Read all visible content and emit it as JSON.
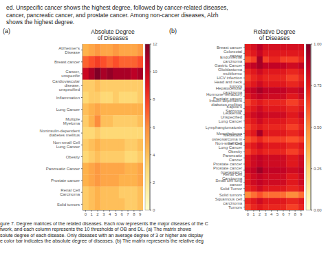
{
  "annotations": [
    "ed. Unspecific cancer shows the highest degree, followed by cancer-related diseases,",
    "cancer, pancreatic cancer, and prostate cancer. Among non-cancer diseases, Alzh",
    "shows the highest degree."
  ],
  "caption": [
    "gure 7. Degree matrices of the related diseases. Each row represents the major diseases of the C",
    "twork, and each column represents the 10 thresholds of OB and DL. (a) The matrix shows",
    "solute degree of each disease. Only diseases with an average degree of 3 or higher are display",
    "e color bar indicates the absolute degree of diseases. (b) The matrix represents the relative deg"
  ],
  "chart_data": [
    {
      "type": "heatmap",
      "annotations": [
        "(a)"
      ],
      "title": "Absolute Degree\nof Diseases",
      "color": "YlOrRd",
      "categories": [
        "Alzheimer's Disease",
        "Breast cancer",
        "Cancer, unspecific",
        "Cardiovascular disease, unspecified",
        "Inflammation",
        "Lung Cancer",
        "Multiple Myeloma",
        "Noninsulin-dependent diabetes mellitus",
        "Non-small Cell Lung Cancer",
        "Obesity",
        "Pancreatic Cancer",
        "Prostate cancer",
        "Renal Cell Carcinoma",
        "Solid tumors"
      ],
      "x": [
        0,
        1,
        2,
        3,
        4,
        5,
        6,
        7,
        8,
        9
      ],
      "xlim": [
        -0.5,
        9.5
      ],
      "xticks": [
        0,
        1,
        2,
        3,
        4,
        5,
        6,
        7,
        8,
        9
      ],
      "colorbar_range": [
        0,
        12
      ],
      "colorbar_ticks": [
        0,
        2,
        4,
        6,
        8,
        10,
        12
      ],
      "values": [
        [
          4.5,
          5.0,
          5.5,
          5.0,
          5.0,
          5.5,
          5.0,
          5.0,
          5.0,
          5.5
        ],
        [
          7.0,
          7.5,
          8.0,
          7.5,
          7.0,
          7.5,
          7.0,
          7.0,
          7.0,
          7.5
        ],
        [
          10.0,
          11.0,
          12.0,
          11.0,
          11.5,
          11.0,
          11.0,
          11.0,
          10.5,
          11.0
        ],
        [
          3.5,
          3.5,
          4.0,
          3.5,
          3.5,
          3.5,
          3.5,
          3.5,
          3.5,
          3.5
        ],
        [
          3.0,
          3.5,
          3.5,
          3.0,
          3.0,
          3.5,
          3.0,
          3.0,
          3.0,
          3.5
        ],
        [
          4.0,
          4.5,
          5.0,
          4.5,
          4.5,
          4.5,
          4.5,
          4.5,
          4.5,
          4.5
        ],
        [
          3.5,
          4.5,
          6.0,
          4.0,
          4.0,
          3.5,
          3.5,
          3.5,
          3.5,
          4.0
        ],
        [
          3.0,
          3.0,
          3.5,
          3.0,
          3.0,
          3.0,
          3.0,
          3.0,
          3.0,
          3.0
        ],
        [
          3.5,
          4.0,
          4.5,
          4.0,
          4.0,
          4.0,
          4.0,
          3.5,
          3.5,
          4.0
        ],
        [
          3.0,
          3.5,
          4.0,
          3.5,
          3.5,
          3.5,
          3.5,
          3.0,
          3.0,
          3.5
        ],
        [
          4.5,
          5.0,
          5.5,
          5.0,
          5.0,
          5.0,
          5.0,
          4.5,
          4.5,
          5.0
        ],
        [
          4.5,
          5.0,
          5.5,
          5.0,
          5.0,
          5.0,
          4.5,
          4.5,
          4.5,
          5.0
        ],
        [
          3.5,
          4.0,
          4.5,
          4.0,
          4.0,
          4.0,
          3.5,
          3.5,
          3.5,
          4.0
        ],
        [
          3.5,
          4.0,
          4.5,
          4.0,
          4.0,
          4.0,
          4.0,
          3.5,
          3.5,
          4.0
        ]
      ]
    },
    {
      "type": "heatmap",
      "annotations": [
        "(b)"
      ],
      "title": "Relative Degree\nof Diseases",
      "color": "YlOrRd",
      "categories": [
        "Breast cancer",
        "Colorectal cancer",
        "Endometrial carcinoma",
        "Gastric Cancer",
        "Glioblastoma multiforme",
        "HCV infection",
        "Head and neck tumors",
        "Hepatocellular carcinoma",
        "Hormone-refractory Prostate cancer",
        "Insulin-dependent diabetes mellitus",
        "Kaposi's Sarcoma",
        "Leukemia, Unspecified",
        "Lung Cancer",
        "Lymphangiomatosis",
        "Mesothelioma",
        "Metastatic osteosarcoma in the lung",
        "Non-small Cell Lung Cancer",
        "Obesity",
        "Pancreatic Cancer",
        "Prostate cancer",
        "Prostate cancer (metastatic)",
        "Renal Cell Carcinoma",
        "Small cell lung cancer",
        "Solid Tumor",
        "Solid tumors",
        "Squamous cell carcinoma",
        "Tumors"
      ],
      "x": [
        0,
        1,
        2,
        3,
        4,
        5,
        6,
        7,
        8,
        9
      ],
      "xlim": [
        -0.5,
        9.5
      ],
      "xticks": [
        0,
        1,
        2,
        3,
        4,
        5,
        6,
        7,
        8,
        9
      ],
      "colorbar_range": [
        0,
        1
      ],
      "colorbar_ticks": [
        {
          "value": 0,
          "label": "0.00"
        },
        0.25,
        {
          "value": 0.5,
          "label": "0.50"
        },
        0.75,
        {
          "value": 1.0,
          "label": "1.00"
        }
      ],
      "values": [
        [
          0.75,
          0.8,
          0.88,
          0.8,
          0.8,
          0.8,
          0.8,
          0.8,
          0.8,
          0.8
        ],
        [
          0.72,
          0.76,
          0.84,
          0.76,
          0.76,
          0.76,
          0.76,
          0.76,
          0.76,
          0.76
        ],
        [
          0.62,
          0.66,
          0.92,
          0.66,
          0.72,
          0.72,
          0.66,
          0.66,
          0.66,
          0.72
        ],
        [
          0.82,
          0.86,
          0.92,
          0.86,
          0.86,
          0.86,
          0.86,
          0.82,
          0.82,
          0.86
        ],
        [
          0.72,
          0.76,
          0.82,
          0.76,
          0.76,
          0.76,
          0.76,
          0.72,
          0.72,
          0.76
        ],
        [
          0.66,
          0.72,
          0.76,
          0.72,
          0.72,
          0.72,
          0.72,
          0.66,
          0.66,
          0.72
        ],
        [
          0.72,
          0.76,
          0.82,
          0.76,
          0.76,
          0.76,
          0.76,
          0.72,
          0.72,
          0.76
        ],
        [
          0.82,
          0.86,
          0.92,
          0.86,
          0.86,
          0.86,
          0.86,
          0.82,
          0.82,
          0.86
        ],
        [
          0.76,
          0.82,
          0.86,
          0.82,
          0.82,
          0.82,
          0.82,
          0.76,
          0.76,
          0.82
        ],
        [
          0.66,
          0.72,
          0.76,
          0.72,
          0.72,
          0.72,
          0.72,
          0.66,
          0.66,
          0.72
        ],
        [
          0.72,
          0.76,
          0.82,
          0.76,
          0.76,
          0.76,
          0.76,
          0.72,
          0.72,
          0.76
        ],
        [
          0.76,
          0.82,
          0.86,
          0.82,
          0.82,
          0.82,
          0.82,
          0.76,
          0.76,
          0.82
        ],
        [
          0.72,
          0.76,
          0.82,
          0.76,
          0.76,
          0.76,
          0.76,
          0.72,
          0.72,
          0.76
        ],
        [
          0.66,
          0.72,
          0.76,
          0.72,
          0.72,
          0.72,
          0.72,
          0.66,
          0.66,
          0.72
        ],
        [
          0.72,
          0.76,
          0.92,
          0.76,
          0.76,
          0.76,
          0.76,
          0.72,
          0.72,
          0.76
        ],
        [
          0.62,
          0.66,
          0.72,
          0.66,
          0.66,
          0.66,
          0.66,
          0.62,
          0.62,
          0.66
        ],
        [
          0.72,
          0.76,
          0.82,
          0.76,
          0.76,
          0.76,
          0.76,
          0.72,
          0.72,
          0.76
        ],
        [
          0.66,
          0.72,
          0.76,
          0.72,
          0.72,
          0.72,
          0.72,
          0.66,
          0.66,
          0.72
        ],
        [
          0.76,
          0.82,
          0.86,
          0.82,
          0.82,
          0.82,
          0.82,
          0.76,
          0.76,
          0.82
        ],
        [
          0.76,
          0.82,
          0.86,
          0.82,
          0.82,
          0.82,
          0.82,
          0.76,
          0.76,
          0.82
        ],
        [
          0.82,
          0.86,
          0.94,
          0.86,
          0.86,
          0.86,
          0.86,
          0.82,
          0.82,
          0.86
        ],
        [
          0.76,
          0.82,
          0.86,
          0.82,
          0.82,
          0.82,
          0.82,
          0.76,
          0.76,
          0.82
        ],
        [
          0.76,
          0.82,
          0.86,
          0.82,
          0.82,
          0.82,
          0.82,
          0.76,
          0.76,
          0.82
        ],
        [
          0.72,
          0.76,
          0.82,
          0.76,
          0.76,
          0.76,
          0.76,
          0.72,
          0.72,
          0.76
        ],
        [
          0.5,
          0.56,
          0.62,
          0.56,
          0.56,
          0.56,
          0.56,
          0.5,
          0.5,
          0.56
        ],
        [
          0.72,
          0.76,
          0.82,
          0.76,
          0.76,
          0.76,
          0.76,
          0.72,
          0.72,
          0.76
        ],
        [
          0.66,
          0.72,
          0.76,
          0.72,
          0.72,
          0.72,
          0.72,
          0.66,
          0.66,
          0.72
        ]
      ]
    }
  ]
}
